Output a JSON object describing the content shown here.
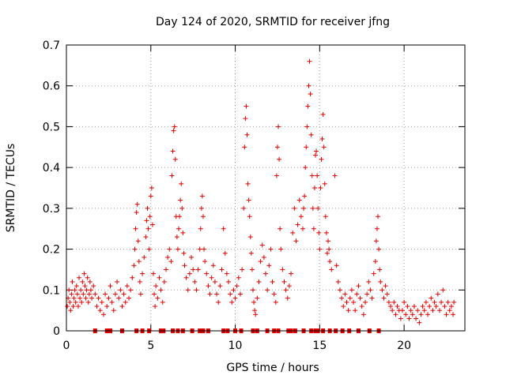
{
  "chart_data": {
    "type": "scatter",
    "title": "Day 124 of 2020, SRMTID for receiver jfng",
    "xlabel": "GPS time / hours",
    "ylabel": "SRMTID / TECUs",
    "xlim": [
      0,
      23.6
    ],
    "ylim": [
      0,
      0.7
    ],
    "xticks": [
      0,
      5,
      10,
      15,
      20
    ],
    "yticks": [
      0,
      0.1,
      0.2,
      0.3,
      0.4,
      0.5,
      0.6,
      0.7
    ],
    "xtick_labels": [
      "0",
      "5",
      "10",
      "15",
      "20"
    ],
    "ytick_labels": [
      "0",
      "0.1",
      "0.2",
      "0.3",
      "0.4",
      "0.5",
      "0.6",
      "0.7"
    ],
    "grid": true,
    "marker": "+",
    "color": "#e00000",
    "series": [
      {
        "name": "SRMTID",
        "points": [
          [
            0.05,
            0.06
          ],
          [
            0.1,
            0.08
          ],
          [
            0.15,
            0.1
          ],
          [
            0.2,
            0.07
          ],
          [
            0.25,
            0.05
          ],
          [
            0.3,
            0.09
          ],
          [
            0.35,
            0.12
          ],
          [
            0.4,
            0.06
          ],
          [
            0.45,
            0.08
          ],
          [
            0.5,
            0.1
          ],
          [
            0.55,
            0.07
          ],
          [
            0.6,
            0.11
          ],
          [
            0.65,
            0.09
          ],
          [
            0.7,
            0.06
          ],
          [
            0.75,
            0.13
          ],
          [
            0.8,
            0.08
          ],
          [
            0.85,
            0.1
          ],
          [
            0.9,
            0.07
          ],
          [
            0.95,
            0.12
          ],
          [
            1.0,
            0.09
          ],
          [
            1.05,
            0.14
          ],
          [
            1.1,
            0.11
          ],
          [
            1.15,
            0.08
          ],
          [
            1.2,
            0.1
          ],
          [
            1.25,
            0.13
          ],
          [
            1.3,
            0.07
          ],
          [
            1.35,
            0.09
          ],
          [
            1.4,
            0.12
          ],
          [
            1.45,
            0.1
          ],
          [
            1.5,
            0.08
          ],
          [
            1.6,
            0.11
          ],
          [
            1.7,
            0.09
          ],
          [
            1.8,
            0.06
          ],
          [
            1.9,
            0.08
          ],
          [
            2.0,
            0.05
          ],
          [
            2.1,
            0.07
          ],
          [
            2.2,
            0.04
          ],
          [
            2.3,
            0.09
          ],
          [
            2.4,
            0.06
          ],
          [
            2.5,
            0.08
          ],
          [
            2.6,
            0.11
          ],
          [
            2.7,
            0.07
          ],
          [
            2.8,
            0.05
          ],
          [
            2.9,
            0.09
          ],
          [
            3.0,
            0.12
          ],
          [
            3.1,
            0.08
          ],
          [
            3.2,
            0.1
          ],
          [
            3.3,
            0.06
          ],
          [
            3.4,
            0.09
          ],
          [
            3.5,
            0.07
          ],
          [
            3.6,
            0.11
          ],
          [
            3.7,
            0.08
          ],
          [
            3.8,
            0.1
          ],
          [
            3.9,
            0.13
          ],
          [
            4.0,
            0.16
          ],
          [
            4.05,
            0.2
          ],
          [
            4.1,
            0.25
          ],
          [
            4.15,
            0.29
          ],
          [
            4.2,
            0.31
          ],
          [
            4.25,
            0.22
          ],
          [
            4.3,
            0.17
          ],
          [
            4.35,
            0.12
          ],
          [
            4.4,
            0.09
          ],
          [
            4.5,
            0.14
          ],
          [
            4.6,
            0.18
          ],
          [
            4.7,
            0.23
          ],
          [
            4.75,
            0.27
          ],
          [
            4.8,
            0.3
          ],
          [
            4.85,
            0.25
          ],
          [
            4.9,
            0.2
          ],
          [
            4.95,
            0.28
          ],
          [
            5.0,
            0.33
          ],
          [
            5.05,
            0.35
          ],
          [
            5.1,
            0.26
          ],
          [
            5.15,
            0.14
          ],
          [
            5.2,
            0.09
          ],
          [
            5.25,
            0.06
          ],
          [
            5.3,
            0.11
          ],
          [
            5.4,
            0.08
          ],
          [
            5.5,
            0.13
          ],
          [
            5.6,
            0.1
          ],
          [
            5.7,
            0.07
          ],
          [
            5.8,
            0.12
          ],
          [
            5.9,
            0.15
          ],
          [
            6.0,
            0.18
          ],
          [
            6.1,
            0.2
          ],
          [
            6.2,
            0.17
          ],
          [
            6.25,
            0.38
          ],
          [
            6.3,
            0.44
          ],
          [
            6.35,
            0.49
          ],
          [
            6.4,
            0.5
          ],
          [
            6.45,
            0.42
          ],
          [
            6.5,
            0.28
          ],
          [
            6.55,
            0.23
          ],
          [
            6.6,
            0.2
          ],
          [
            6.65,
            0.25
          ],
          [
            6.7,
            0.28
          ],
          [
            6.75,
            0.32
          ],
          [
            6.8,
            0.36
          ],
          [
            6.85,
            0.3
          ],
          [
            6.9,
            0.24
          ],
          [
            6.95,
            0.19
          ],
          [
            7.0,
            0.16
          ],
          [
            7.1,
            0.13
          ],
          [
            7.2,
            0.1
          ],
          [
            7.3,
            0.14
          ],
          [
            7.4,
            0.18
          ],
          [
            7.5,
            0.15
          ],
          [
            7.6,
            0.12
          ],
          [
            7.7,
            0.1
          ],
          [
            7.8,
            0.15
          ],
          [
            7.9,
            0.2
          ],
          [
            7.95,
            0.25
          ],
          [
            8.0,
            0.3
          ],
          [
            8.05,
            0.33
          ],
          [
            8.1,
            0.28
          ],
          [
            8.15,
            0.2
          ],
          [
            8.2,
            0.17
          ],
          [
            8.3,
            0.14
          ],
          [
            8.4,
            0.11
          ],
          [
            8.5,
            0.09
          ],
          [
            8.6,
            0.13
          ],
          [
            8.7,
            0.16
          ],
          [
            8.8,
            0.12
          ],
          [
            8.9,
            0.09
          ],
          [
            9.0,
            0.07
          ],
          [
            9.1,
            0.11
          ],
          [
            9.2,
            0.15
          ],
          [
            9.3,
            0.25
          ],
          [
            9.4,
            0.19
          ],
          [
            9.5,
            0.14
          ],
          [
            9.6,
            0.12
          ],
          [
            9.7,
            0.09
          ],
          [
            9.8,
            0.07
          ],
          [
            9.9,
            0.1
          ],
          [
            10.0,
            0.08
          ],
          [
            10.1,
            0.11
          ],
          [
            10.2,
            0.13
          ],
          [
            10.3,
            0.09
          ],
          [
            10.4,
            0.15
          ],
          [
            10.5,
            0.3
          ],
          [
            10.55,
            0.45
          ],
          [
            10.6,
            0.52
          ],
          [
            10.65,
            0.55
          ],
          [
            10.7,
            0.48
          ],
          [
            10.75,
            0.36
          ],
          [
            10.8,
            0.32
          ],
          [
            10.85,
            0.28
          ],
          [
            10.9,
            0.23
          ],
          [
            10.95,
            0.19
          ],
          [
            11.0,
            0.15
          ],
          [
            11.05,
            0.1
          ],
          [
            11.1,
            0.07
          ],
          [
            11.15,
            0.05
          ],
          [
            11.2,
            0.04
          ],
          [
            11.3,
            0.08
          ],
          [
            11.4,
            0.12
          ],
          [
            11.5,
            0.17
          ],
          [
            11.6,
            0.21
          ],
          [
            11.7,
            0.18
          ],
          [
            11.8,
            0.14
          ],
          [
            11.9,
            0.1
          ],
          [
            12.0,
            0.16
          ],
          [
            12.1,
            0.2
          ],
          [
            12.2,
            0.12
          ],
          [
            12.3,
            0.09
          ],
          [
            12.4,
            0.07
          ],
          [
            12.45,
            0.38
          ],
          [
            12.5,
            0.45
          ],
          [
            12.55,
            0.5
          ],
          [
            12.6,
            0.42
          ],
          [
            12.65,
            0.25
          ],
          [
            12.7,
            0.2
          ],
          [
            12.8,
            0.15
          ],
          [
            12.9,
            0.12
          ],
          [
            13.0,
            0.1
          ],
          [
            13.1,
            0.08
          ],
          [
            13.2,
            0.11
          ],
          [
            13.3,
            0.14
          ],
          [
            13.4,
            0.24
          ],
          [
            13.5,
            0.3
          ],
          [
            13.6,
            0.22
          ],
          [
            13.7,
            0.26
          ],
          [
            13.8,
            0.32
          ],
          [
            13.9,
            0.28
          ],
          [
            14.0,
            0.25
          ],
          [
            14.05,
            0.3
          ],
          [
            14.1,
            0.33
          ],
          [
            14.15,
            0.4
          ],
          [
            14.2,
            0.45
          ],
          [
            14.25,
            0.5
          ],
          [
            14.3,
            0.55
          ],
          [
            14.35,
            0.6
          ],
          [
            14.4,
            0.66
          ],
          [
            14.45,
            0.58
          ],
          [
            14.5,
            0.48
          ],
          [
            14.55,
            0.38
          ],
          [
            14.6,
            0.3
          ],
          [
            14.65,
            0.25
          ],
          [
            14.7,
            0.35
          ],
          [
            14.75,
            0.43
          ],
          [
            14.8,
            0.44
          ],
          [
            14.85,
            0.38
          ],
          [
            14.9,
            0.3
          ],
          [
            14.95,
            0.24
          ],
          [
            15.0,
            0.2
          ],
          [
            15.05,
            0.35
          ],
          [
            15.1,
            0.42
          ],
          [
            15.15,
            0.47
          ],
          [
            15.2,
            0.53
          ],
          [
            15.25,
            0.45
          ],
          [
            15.3,
            0.36
          ],
          [
            15.35,
            0.28
          ],
          [
            15.4,
            0.24
          ],
          [
            15.45,
            0.19
          ],
          [
            15.5,
            0.22
          ],
          [
            15.55,
            0.2
          ],
          [
            15.6,
            0.17
          ],
          [
            15.7,
            0.15
          ],
          [
            15.9,
            0.38
          ],
          [
            16.0,
            0.16
          ],
          [
            16.1,
            0.12
          ],
          [
            16.2,
            0.1
          ],
          [
            16.3,
            0.08
          ],
          [
            16.4,
            0.06
          ],
          [
            16.5,
            0.09
          ],
          [
            16.6,
            0.07
          ],
          [
            16.7,
            0.05
          ],
          [
            16.8,
            0.08
          ],
          [
            16.9,
            0.1
          ],
          [
            17.0,
            0.07
          ],
          [
            17.1,
            0.05
          ],
          [
            17.2,
            0.09
          ],
          [
            17.3,
            0.11
          ],
          [
            17.4,
            0.08
          ],
          [
            17.5,
            0.06
          ],
          [
            17.6,
            0.04
          ],
          [
            17.7,
            0.07
          ],
          [
            17.8,
            0.09
          ],
          [
            17.9,
            0.12
          ],
          [
            18.0,
            0.1
          ],
          [
            18.1,
            0.08
          ],
          [
            18.2,
            0.14
          ],
          [
            18.3,
            0.17
          ],
          [
            18.35,
            0.22
          ],
          [
            18.4,
            0.25
          ],
          [
            18.45,
            0.28
          ],
          [
            18.5,
            0.2
          ],
          [
            18.55,
            0.15
          ],
          [
            18.6,
            0.12
          ],
          [
            18.7,
            0.1
          ],
          [
            18.8,
            0.08
          ],
          [
            18.9,
            0.11
          ],
          [
            19.0,
            0.09
          ],
          [
            19.1,
            0.07
          ],
          [
            19.2,
            0.06
          ],
          [
            19.3,
            0.05
          ],
          [
            19.4,
            0.07
          ],
          [
            19.5,
            0.04
          ],
          [
            19.6,
            0.06
          ],
          [
            19.7,
            0.05
          ],
          [
            19.8,
            0.03
          ],
          [
            19.9,
            0.05
          ],
          [
            20.0,
            0.07
          ],
          [
            20.1,
            0.04
          ],
          [
            20.2,
            0.06
          ],
          [
            20.3,
            0.03
          ],
          [
            20.4,
            0.05
          ],
          [
            20.5,
            0.04
          ],
          [
            20.6,
            0.06
          ],
          [
            20.7,
            0.03
          ],
          [
            20.8,
            0.05
          ],
          [
            20.9,
            0.02
          ],
          [
            21.0,
            0.04
          ],
          [
            21.1,
            0.06
          ],
          [
            21.2,
            0.05
          ],
          [
            21.3,
            0.07
          ],
          [
            21.4,
            0.04
          ],
          [
            21.5,
            0.06
          ],
          [
            21.6,
            0.08
          ],
          [
            21.7,
            0.05
          ],
          [
            21.8,
            0.07
          ],
          [
            21.9,
            0.06
          ],
          [
            22.0,
            0.09
          ],
          [
            22.1,
            0.05
          ],
          [
            22.2,
            0.07
          ],
          [
            22.3,
            0.1
          ],
          [
            22.4,
            0.06
          ],
          [
            22.5,
            0.04
          ],
          [
            22.6,
            0.07
          ],
          [
            22.7,
            0.05
          ],
          [
            22.8,
            0.06
          ],
          [
            22.9,
            0.04
          ],
          [
            22.95,
            0.07
          ]
        ],
        "zeros": [
          1.7,
          2.4,
          2.6,
          3.3,
          4.15,
          4.5,
          4.9,
          5.6,
          5.75,
          6.3,
          6.6,
          6.9,
          7.45,
          7.9,
          8.1,
          8.4,
          9.3,
          9.55,
          10.0,
          10.35,
          11.05,
          11.3,
          11.9,
          12.3,
          12.55,
          13.15,
          13.3,
          13.55,
          14.05,
          14.5,
          14.75,
          14.9,
          15.2,
          15.6,
          15.95,
          16.35,
          16.75,
          17.3,
          17.95,
          18.5
        ]
      }
    ]
  }
}
